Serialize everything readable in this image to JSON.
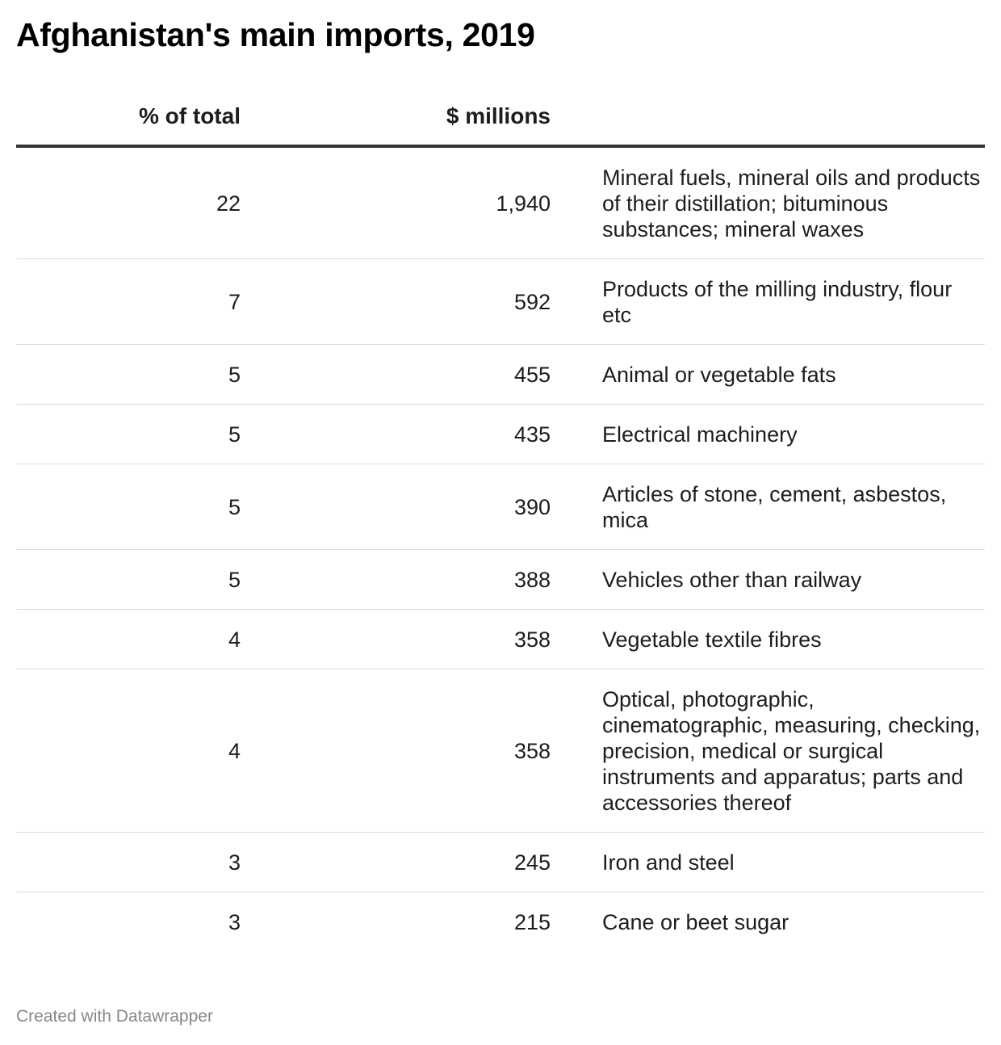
{
  "title": "Afghanistan's main imports, 2019",
  "chart_data": {
    "type": "table",
    "title": "Afghanistan's main imports, 2019",
    "columns": [
      "% of total",
      "$ millions",
      ""
    ],
    "rows": [
      {
        "pct": "22",
        "usd": "1,940",
        "name": "Mineral fuels, mineral oils and products of their distillation; bituminous substances; mineral waxes"
      },
      {
        "pct": "7",
        "usd": "592",
        "name": "Products of the milling industry, flour etc"
      },
      {
        "pct": "5",
        "usd": "455",
        "name": "Animal or vegetable fats"
      },
      {
        "pct": "5",
        "usd": "435",
        "name": "Electrical machinery"
      },
      {
        "pct": "5",
        "usd": "390",
        "name": "Articles of stone, cement, asbestos, mica"
      },
      {
        "pct": "5",
        "usd": "388",
        "name": "Vehicles other than railway"
      },
      {
        "pct": "4",
        "usd": "358",
        "name": "Vegetable textile fibres"
      },
      {
        "pct": "4",
        "usd": "358",
        "name": "Optical, photographic, cinematographic, measuring, checking, precision, medical or surgical instruments and apparatus; parts and accessories thereof"
      },
      {
        "pct": "3",
        "usd": "245",
        "name": "Iron and steel"
      },
      {
        "pct": "3",
        "usd": "215",
        "name": "Cane or beet sugar"
      }
    ]
  },
  "footer": "Created with Datawrapper"
}
